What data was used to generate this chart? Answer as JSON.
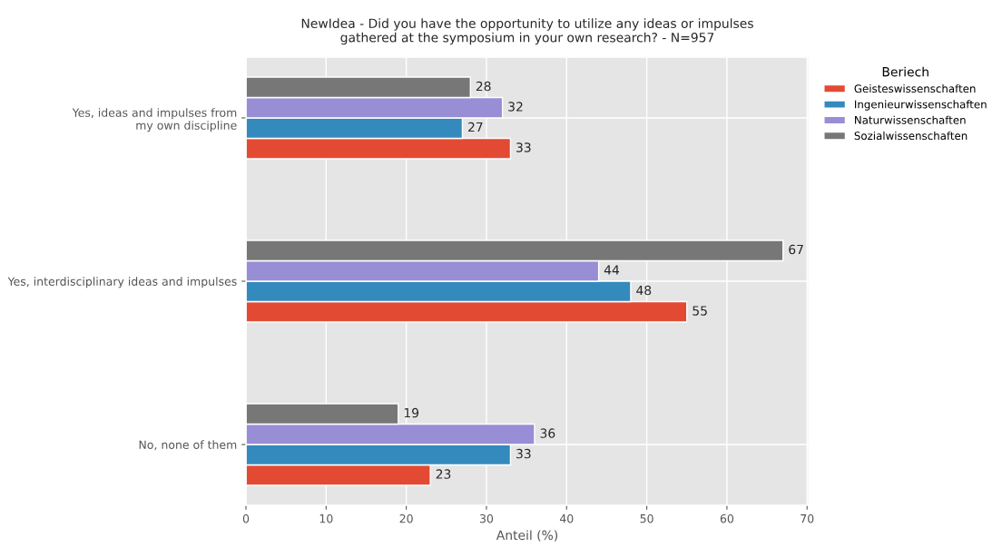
{
  "chart_data": {
    "type": "bar",
    "orientation": "horizontal",
    "title": "NewIdea - Did you have the opportunity to utilize any ideas or impulses\ngathered at the symposium in your own research? - N=957",
    "xlabel": "Anteil (%)",
    "legend_title": "Beriech",
    "categories": [
      "Yes, ideas and impulses from\nmy own discipline",
      "Yes, interdisciplinary ideas and impulses",
      "No, none of them"
    ],
    "series": [
      {
        "name": "Geisteswissenschaften",
        "color": "#e24a33",
        "values": [
          33,
          55,
          23
        ]
      },
      {
        "name": "Ingenieurwissenschaften",
        "color": "#348abd",
        "values": [
          27,
          48,
          33
        ]
      },
      {
        "name": "Naturwissenschaften",
        "color": "#988ed5",
        "values": [
          32,
          44,
          36
        ]
      },
      {
        "name": "Sozialwissenschaften",
        "color": "#777777",
        "values": [
          28,
          67,
          19
        ]
      }
    ],
    "xlim": [
      0,
      70.2
    ],
    "xticks": [
      0,
      10,
      20,
      30,
      40,
      50,
      60,
      70
    ],
    "data_labels": true,
    "grid": true,
    "legend": "top right"
  }
}
